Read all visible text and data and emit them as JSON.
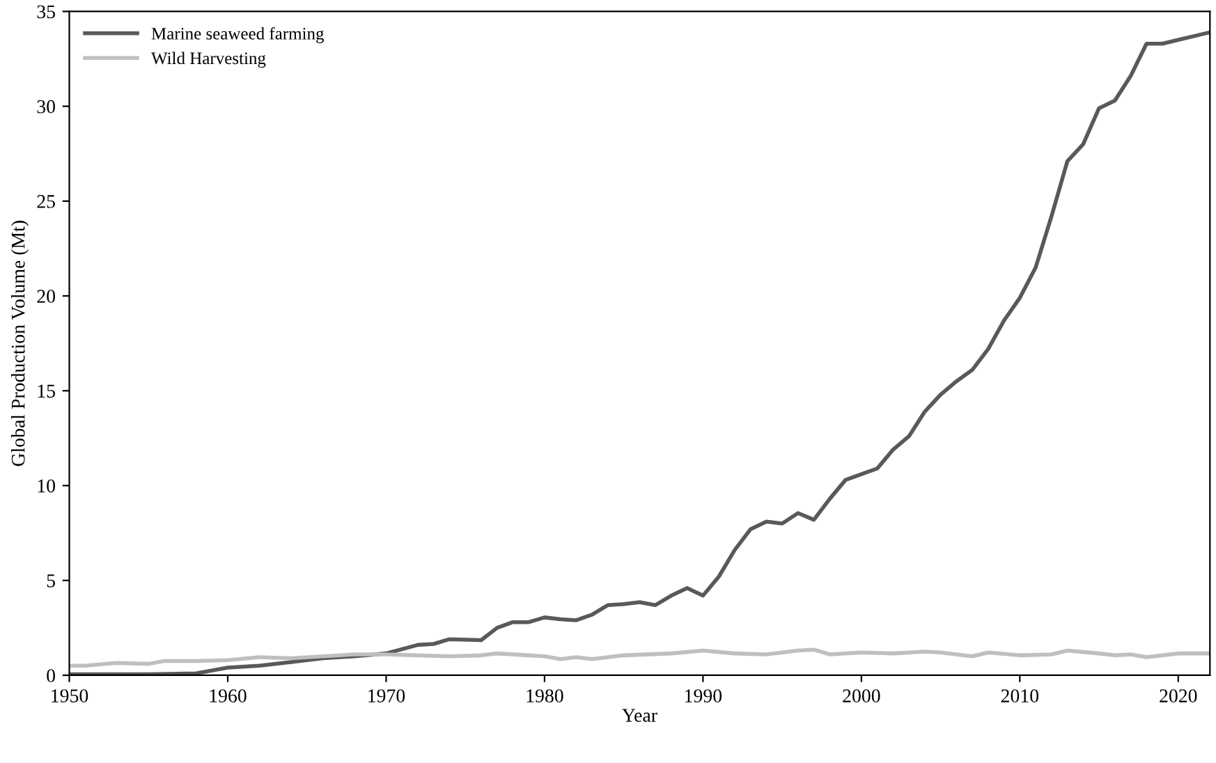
{
  "chart_data": {
    "type": "line",
    "xlabel": "Year",
    "ylabel": "Global Production Volume (Mt)",
    "xlim": [
      1950,
      2022
    ],
    "xticks": [
      1950,
      1960,
      1970,
      1980,
      1990,
      2000,
      2010,
      2020
    ],
    "ylim": [
      0,
      35
    ],
    "yticks": [
      0,
      5,
      10,
      15,
      20,
      25,
      30,
      35
    ],
    "grid": false,
    "legend": "top left",
    "line_style": "solid",
    "marker": "none",
    "series": [
      {
        "name": "Marine seaweed farming",
        "color": "#595959",
        "x": [
          1950,
          1955,
          1958,
          1960,
          1962,
          1964,
          1966,
          1968,
          1970,
          1972,
          1973,
          1974,
          1976,
          1977,
          1978,
          1979,
          1980,
          1981,
          1982,
          1983,
          1984,
          1985,
          1986,
          1987,
          1988,
          1989,
          1990,
          1991,
          1992,
          1993,
          1994,
          1995,
          1996,
          1997,
          1998,
          1999,
          2000,
          2001,
          2002,
          2003,
          2004,
          2005,
          2006,
          2007,
          2008,
          2009,
          2010,
          2011,
          2012,
          2013,
          2014,
          2015,
          2016,
          2017,
          2018,
          2019,
          2020,
          2021,
          2022
        ],
        "values": [
          0.05,
          0.05,
          0.1,
          0.4,
          0.5,
          0.7,
          0.9,
          1.0,
          1.15,
          1.6,
          1.65,
          1.9,
          1.85,
          2.5,
          2.8,
          2.8,
          3.05,
          2.95,
          2.9,
          3.2,
          3.7,
          3.75,
          3.85,
          3.7,
          4.2,
          4.6,
          4.2,
          5.2,
          6.6,
          7.7,
          8.1,
          8.0,
          8.55,
          8.2,
          9.3,
          10.3,
          10.6,
          10.9,
          11.9,
          12.6,
          13.9,
          14.8,
          15.5,
          16.1,
          17.2,
          18.7,
          19.9,
          21.5,
          24.2,
          27.1,
          28.0,
          29.9,
          30.3,
          31.6,
          33.3,
          33.3,
          33.5,
          33.7,
          33.9
        ]
      },
      {
        "name": "Wild Harvesting",
        "color": "#bfbfbf",
        "x": [
          1950,
          1951,
          1953,
          1955,
          1956,
          1958,
          1960,
          1962,
          1964,
          1966,
          1968,
          1970,
          1972,
          1974,
          1976,
          1977,
          1980,
          1981,
          1982,
          1983,
          1985,
          1988,
          1990,
          1992,
          1994,
          1996,
          1997,
          1998,
          2000,
          2002,
          2004,
          2005,
          2007,
          2008,
          2010,
          2012,
          2013,
          2015,
          2016,
          2017,
          2018,
          2020,
          2022
        ],
        "values": [
          0.5,
          0.5,
          0.65,
          0.6,
          0.75,
          0.75,
          0.8,
          0.95,
          0.9,
          1.0,
          1.1,
          1.1,
          1.05,
          1.0,
          1.05,
          1.15,
          1.0,
          0.85,
          0.95,
          0.85,
          1.05,
          1.15,
          1.3,
          1.15,
          1.1,
          1.3,
          1.35,
          1.1,
          1.2,
          1.15,
          1.25,
          1.2,
          1.0,
          1.2,
          1.05,
          1.1,
          1.3,
          1.15,
          1.05,
          1.1,
          0.95,
          1.15,
          1.15
        ]
      }
    ]
  }
}
